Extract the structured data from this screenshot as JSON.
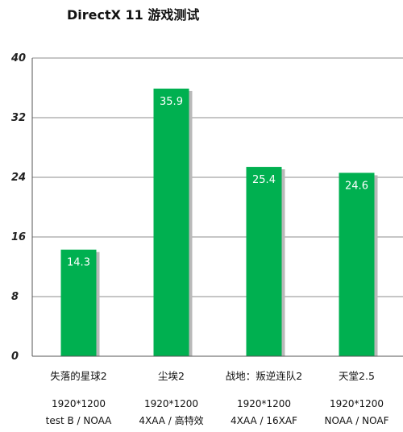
{
  "colors": {
    "bar": "#00b050",
    "bar_shadow": "#b9b9b9",
    "gridline": "#8c8c8c",
    "axis": "#555555"
  },
  "chart_data": {
    "type": "bar",
    "title": "DirectX 11 游戏测试",
    "categories": [
      "失落的星球2",
      "尘埃2",
      "战地：叛逆连队2",
      "天堂2.5"
    ],
    "subtitles": [
      [
        "1920*1200",
        "test B /  NOAA"
      ],
      [
        "1920*1200",
        "4XAA / 高特效"
      ],
      [
        "1920*1200",
        "4XAA / 16XAF"
      ],
      [
        "1920*1200",
        "NOAA / NOAF"
      ]
    ],
    "values": [
      14.3,
      35.9,
      25.4,
      24.6
    ],
    "data_labels": [
      "14.3",
      "35.9",
      "25.4",
      "24.6"
    ],
    "yticks": [
      0,
      8,
      16,
      24,
      32,
      40
    ],
    "ylim": [
      0,
      40
    ],
    "grid": true,
    "legend": "none"
  }
}
